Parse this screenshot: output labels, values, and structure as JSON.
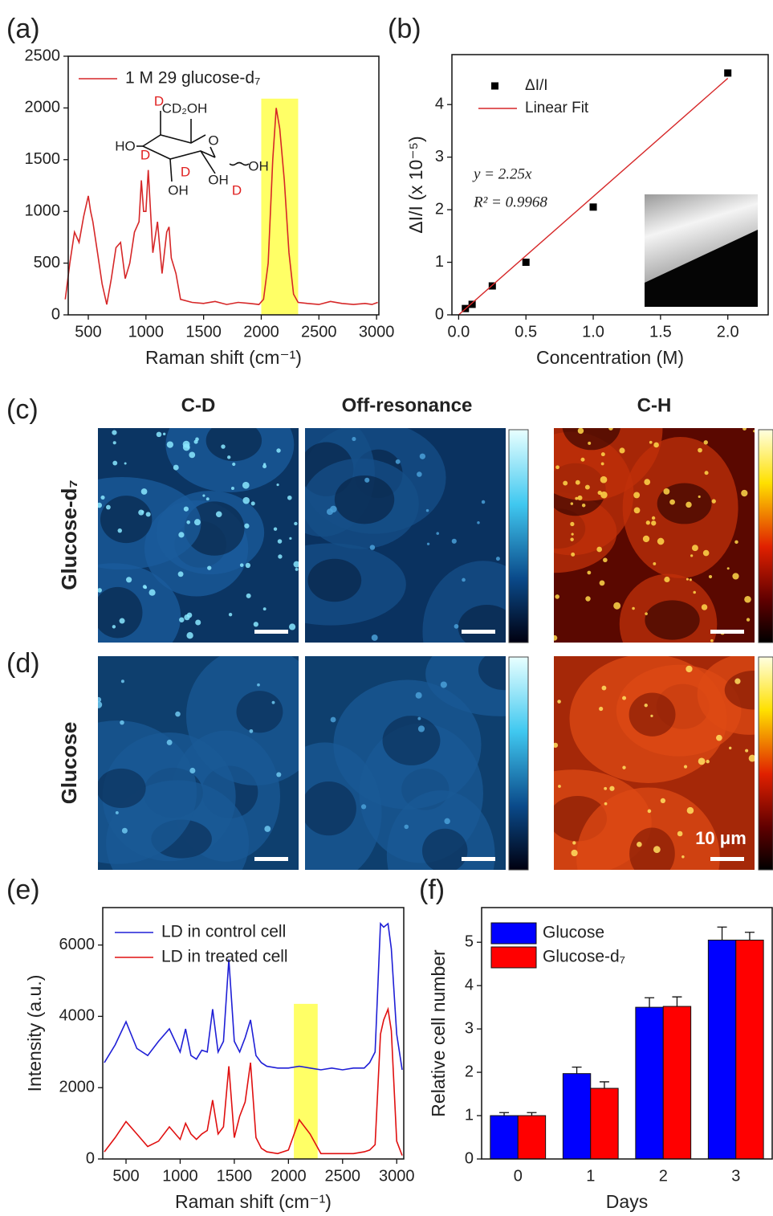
{
  "figure": {
    "panel_labels": [
      "(a)",
      "(b)",
      "(c)",
      "(d)",
      "(e)",
      "(f)"
    ],
    "image_columns": [
      "C-D",
      "Off-resonance",
      "C-H"
    ],
    "image_rows": [
      "Glucose-d₇",
      "Glucose"
    ],
    "scale_bar": "10 μm"
  },
  "chart_data": [
    {
      "type": "line",
      "x": [
        300,
        340,
        380,
        420,
        460,
        500,
        520,
        540,
        580,
        620,
        660,
        700,
        740,
        780,
        820,
        860,
        900,
        940,
        960,
        980,
        1000,
        1020,
        1060,
        1100,
        1140,
        1180,
        1200,
        1220,
        1260,
        1300,
        1400,
        1500,
        1600,
        1700,
        1800,
        1900,
        1980,
        2020,
        2060,
        2100,
        2130,
        2160,
        2200,
        2240,
        2280,
        2320,
        2400,
        2500,
        2600,
        2700,
        2800,
        2900,
        2960,
        3010
      ],
      "series": [
        {
          "name": "1 M 29 glucose-d₇",
          "color": "#d62728",
          "values": [
            150,
            500,
            800,
            700,
            950,
            1150,
            1000,
            900,
            600,
            300,
            100,
            350,
            650,
            700,
            350,
            500,
            800,
            900,
            1300,
            1000,
            1000,
            1400,
            600,
            900,
            400,
            800,
            850,
            550,
            400,
            150,
            120,
            110,
            130,
            100,
            120,
            110,
            100,
            150,
            500,
            1500,
            2000,
            1800,
            1300,
            600,
            200,
            120,
            110,
            100,
            130,
            110,
            100,
            110,
            100,
            120
          ]
        }
      ],
      "xlabel": "Raman shift (cm⁻¹)",
      "xlim": [
        326,
        3020
      ],
      "ylim": [
        0,
        2500
      ],
      "xticks": [
        500,
        1000,
        1500,
        2000,
        2500,
        3000
      ],
      "yticks": [
        0,
        500,
        1000,
        1500,
        2000,
        2500
      ],
      "highlight": {
        "range": [
          2000,
          2320
        ],
        "yrange": [
          0,
          2090
        ],
        "color": "#ffff66"
      },
      "annotations": [
        "D",
        "CD₂OH",
        "HO",
        "D",
        "O",
        "D",
        "OH",
        "OH",
        "OH",
        "D"
      ]
    },
    {
      "type": "scatter",
      "series": [
        {
          "name": "ΔI/I",
          "color": "#000000",
          "marker": "square",
          "x": [
            0.05,
            0.1,
            0.25,
            0.5,
            1,
            2
          ],
          "values": [
            0.12,
            0.2,
            0.55,
            1.0,
            2.05,
            4.6
          ]
        },
        {
          "name": "Linear Fit",
          "color": "#d62728",
          "marker": "line",
          "x": [
            0,
            2
          ],
          "values": [
            0,
            4.5
          ]
        }
      ],
      "xlabel": "Concentration (M)",
      "ylabel": "ΔI/I (x 10⁻⁵)",
      "xlim": [
        -0.05,
        2.3
      ],
      "ylim": [
        0,
        4.95
      ],
      "xticks": [
        {
          "value": 0,
          "label": "0.0"
        },
        {
          "value": 0.5,
          "label": "0.5"
        },
        {
          "value": 1,
          "label": "1.0"
        },
        {
          "value": 1.5,
          "label": "1.5"
        },
        {
          "value": 2,
          "label": "2.0"
        }
      ],
      "yticks": [
        0,
        1,
        2,
        3,
        4
      ],
      "annotations": [
        "y = 2.25x",
        "R² = 0.9968"
      ]
    },
    {
      "type": "line",
      "x": [
        300,
        400,
        500,
        600,
        700,
        800,
        900,
        1000,
        1050,
        1100,
        1150,
        1200,
        1250,
        1300,
        1350,
        1400,
        1450,
        1500,
        1550,
        1600,
        1650,
        1700,
        1750,
        1800,
        1900,
        2000,
        2100,
        2200,
        2300,
        2400,
        2500,
        2600,
        2700,
        2750,
        2800,
        2850,
        2880,
        2920,
        2950,
        3000,
        3050
      ],
      "series": [
        {
          "name": "LD in control cell",
          "color": "#1f1fd6",
          "values": [
            2700,
            3200,
            3850,
            3100,
            2900,
            3300,
            3650,
            3000,
            3650,
            2900,
            2800,
            3050,
            3000,
            4200,
            3000,
            3300,
            5600,
            3300,
            3000,
            3400,
            3900,
            2900,
            2700,
            2600,
            2550,
            2550,
            2600,
            2550,
            2500,
            2550,
            2500,
            2550,
            2550,
            2700,
            3000,
            6600,
            6500,
            6600,
            5900,
            3500,
            2500
          ]
        },
        {
          "name": "LD in treated cell",
          "color": "#e01010",
          "values": [
            200,
            600,
            1050,
            700,
            350,
            500,
            900,
            550,
            1000,
            700,
            550,
            700,
            800,
            1650,
            700,
            900,
            2600,
            600,
            1200,
            1600,
            2700,
            600,
            300,
            200,
            150,
            250,
            1100,
            700,
            150,
            150,
            150,
            150,
            200,
            250,
            400,
            3500,
            3900,
            4200,
            3600,
            500,
            100
          ]
        }
      ],
      "xlabel": "Raman shift (cm⁻¹)",
      "ylabel": "Intensity (a.u.)",
      "xlim": [
        285,
        3065
      ],
      "ylim": [
        0,
        7050
      ],
      "xticks": [
        500,
        1000,
        1500,
        2000,
        2500,
        3000
      ],
      "yticks": [
        0,
        2000,
        4000,
        6000
      ],
      "highlight": {
        "range": [
          2050,
          2270
        ],
        "yrange": [
          0,
          4350
        ],
        "color": "#ffff66"
      }
    },
    {
      "type": "bar",
      "categories": [
        "0",
        "1",
        "2",
        "3"
      ],
      "series": [
        {
          "name": "Glucose",
          "color": "#0000ff",
          "values": [
            1.0,
            1.97,
            3.5,
            5.05
          ],
          "errors": [
            0.07,
            0.15,
            0.22,
            0.3
          ]
        },
        {
          "name": "Glucose-d₇",
          "color": "#ff0000",
          "values": [
            1.0,
            1.63,
            3.52,
            5.05
          ],
          "errors": [
            0.07,
            0.15,
            0.22,
            0.18
          ]
        }
      ],
      "xlabel": "Days",
      "ylabel": "Relative cell number",
      "ylim": [
        0,
        5.8
      ],
      "yticks": [
        0,
        1,
        2,
        3,
        4,
        5
      ]
    }
  ]
}
